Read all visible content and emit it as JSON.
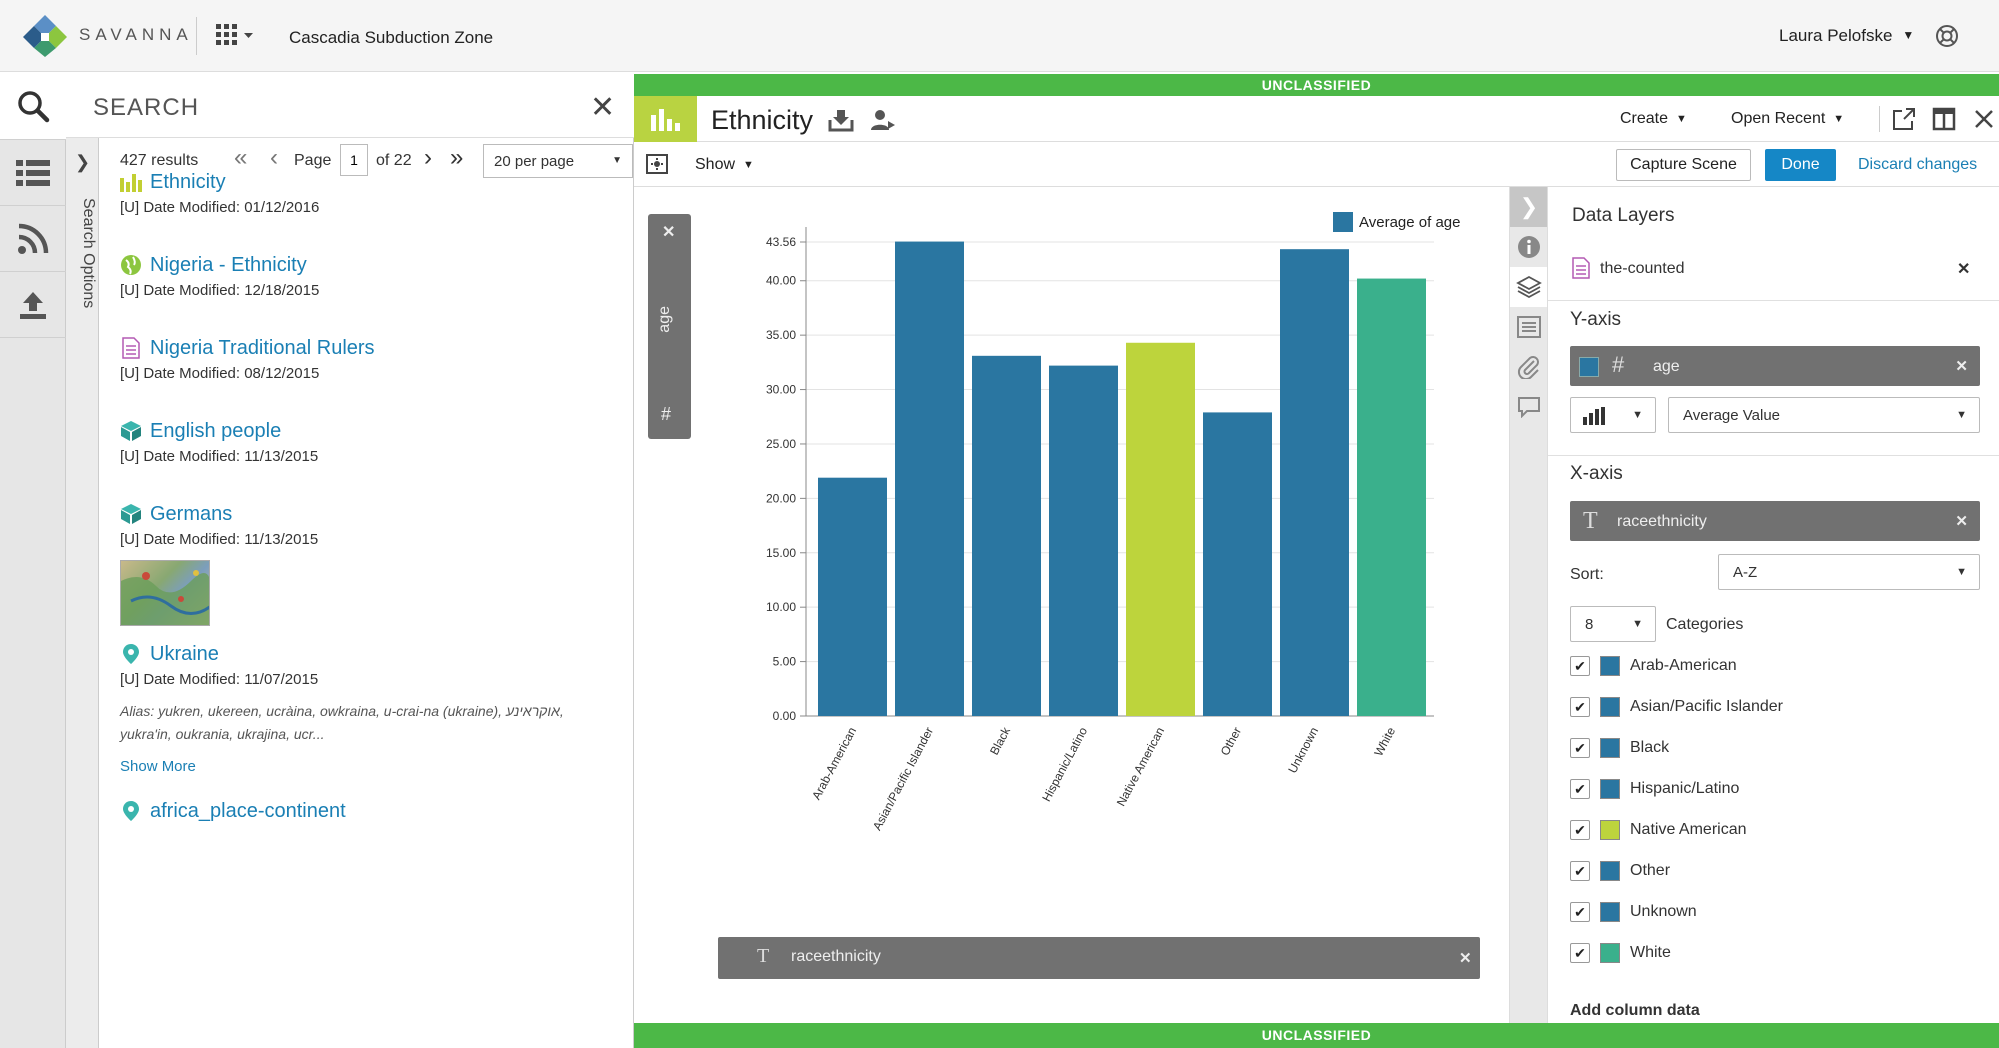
{
  "app": {
    "logo_text": "SAVANNA",
    "workspace_title": "Cascadia Subduction Zone",
    "user_name": "Laura Pelofske"
  },
  "search": {
    "title": "SEARCH",
    "result_count": "427 results",
    "page_label": "Page",
    "page_value": "1",
    "page_of": "of 22",
    "per_page": "20 per page",
    "options_label": "Search Options",
    "results": [
      {
        "title": "Ethnicity",
        "meta": "[U] Date Modified: 01/12/2016",
        "icon": "bar-chart-icon"
      },
      {
        "title": "Nigeria - Ethnicity",
        "meta": "[U] Date Modified: 12/18/2015",
        "icon": "globe-icon"
      },
      {
        "title": "Nigeria Traditional Rulers",
        "meta": "[U] Date Modified: 08/12/2015",
        "icon": "document-icon"
      },
      {
        "title": "English people",
        "meta": "[U] Date Modified: 11/13/2015",
        "icon": "cube-icon"
      },
      {
        "title": "Germans",
        "meta": "[U] Date Modified: 11/13/2015",
        "icon": "cube-icon"
      },
      {
        "title": "Ukraine",
        "meta": "[U] Date Modified: 11/07/2015",
        "icon": "map-pin-icon",
        "alias": "Alias: yukren, ukereen, ucràina, owkraina, u-crai-na (ukraine), אוקראינע, yukra'in, oukrania, ukrajina, ucr...",
        "show_more": "Show More"
      },
      {
        "title": "africa_place-continent",
        "meta": "",
        "icon": "map-pin-icon"
      }
    ]
  },
  "classification": "UNCLASSIFIED",
  "viz": {
    "title": "Ethnicity",
    "create_label": "Create",
    "open_recent_label": "Open Recent",
    "show_label": "Show",
    "capture_scene_label": "Capture Scene",
    "done_label": "Done",
    "discard_label": "Discard changes",
    "y_pill_label": "age",
    "y_pill_hash": "#",
    "x_pill_t": "T",
    "x_pill_label": "raceethnicity"
  },
  "panel": {
    "title": "Data Layers",
    "layer_name": "the-counted",
    "y_axis_title": "Y-axis",
    "y_field": "age",
    "y_field_hash": "#",
    "aggregation": "Average Value",
    "x_axis_title": "X-axis",
    "x_field_t": "T",
    "x_field": "raceethnicity",
    "sort_label": "Sort:",
    "sort_value": "A-Z",
    "category_count": "8",
    "categories_label": "Categories",
    "categories": [
      {
        "label": "Arab-American",
        "color": "#2a76a1",
        "checked": true
      },
      {
        "label": "Asian/Pacific Islander",
        "color": "#2a76a1",
        "checked": true
      },
      {
        "label": "Black",
        "color": "#2a76a1",
        "checked": true
      },
      {
        "label": "Hispanic/Latino",
        "color": "#2a76a1",
        "checked": true
      },
      {
        "label": "Native American",
        "color": "#bdd43c",
        "checked": true
      },
      {
        "label": "Other",
        "color": "#2a76a1",
        "checked": true
      },
      {
        "label": "Unknown",
        "color": "#2a76a1",
        "checked": true
      },
      {
        "label": "White",
        "color": "#3ab08c",
        "checked": true
      }
    ],
    "add_column_label": "Add column data"
  },
  "colors": {
    "accent_blue": "#1587c6",
    "classification_green": "#4cb847",
    "viz_icon_green": "#b9d341",
    "bar_default": "#2a76a1"
  },
  "chart_data": {
    "type": "bar",
    "categories": [
      "Arab-American",
      "Asian/Pacific Islander",
      "Black",
      "Hispanic/Latino",
      "Native American",
      "Other",
      "Unknown",
      "White"
    ],
    "series": [
      {
        "name": "Average of age",
        "values": [
          21.9,
          43.6,
          33.1,
          32.2,
          34.3,
          27.9,
          42.9,
          40.2
        ]
      }
    ],
    "bar_colors": [
      "#2a76a1",
      "#2a76a1",
      "#2a76a1",
      "#2a76a1",
      "#bdd43c",
      "#2a76a1",
      "#2a76a1",
      "#3ab08c"
    ],
    "y_ticks": [
      "0.00",
      "5.00",
      "10.00",
      "15.00",
      "20.00",
      "25.00",
      "30.00",
      "35.00",
      "40.00",
      "43.56"
    ],
    "y_tick_values": [
      0,
      5,
      10,
      15,
      20,
      25,
      30,
      35,
      40,
      43.56
    ],
    "ylim": [
      0,
      43.56
    ],
    "grid": true,
    "legend_position": "top-right",
    "legend_color": "#2a76a1",
    "title": "",
    "xlabel": "",
    "ylabel": ""
  }
}
